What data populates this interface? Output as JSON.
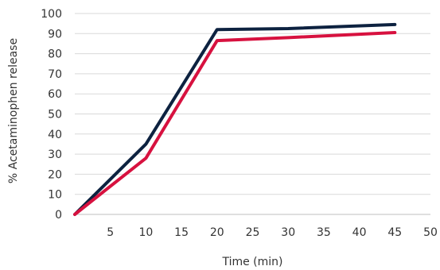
{
  "chart_data": {
    "type": "line",
    "title": "",
    "xlabel": "Time (min)",
    "ylabel": "% Acetaminophen release",
    "xlim": [
      0,
      50
    ],
    "ylim": [
      0,
      100
    ],
    "x_ticks": [
      5,
      10,
      15,
      20,
      25,
      30,
      35,
      40,
      45,
      50
    ],
    "y_ticks": [
      0,
      10,
      20,
      30,
      40,
      50,
      60,
      70,
      80,
      90,
      100
    ],
    "grid": "horizontal",
    "legend": "none",
    "series": [
      {
        "color": "#0d2240",
        "x": [
          0,
          10,
          20,
          30,
          45
        ],
        "y": [
          0,
          35,
          92,
          92.5,
          94.5
        ]
      },
      {
        "color": "#d7113f",
        "x": [
          0,
          10,
          20,
          30,
          45
        ],
        "y": [
          0,
          28,
          86.5,
          88,
          90.5
        ]
      }
    ]
  }
}
